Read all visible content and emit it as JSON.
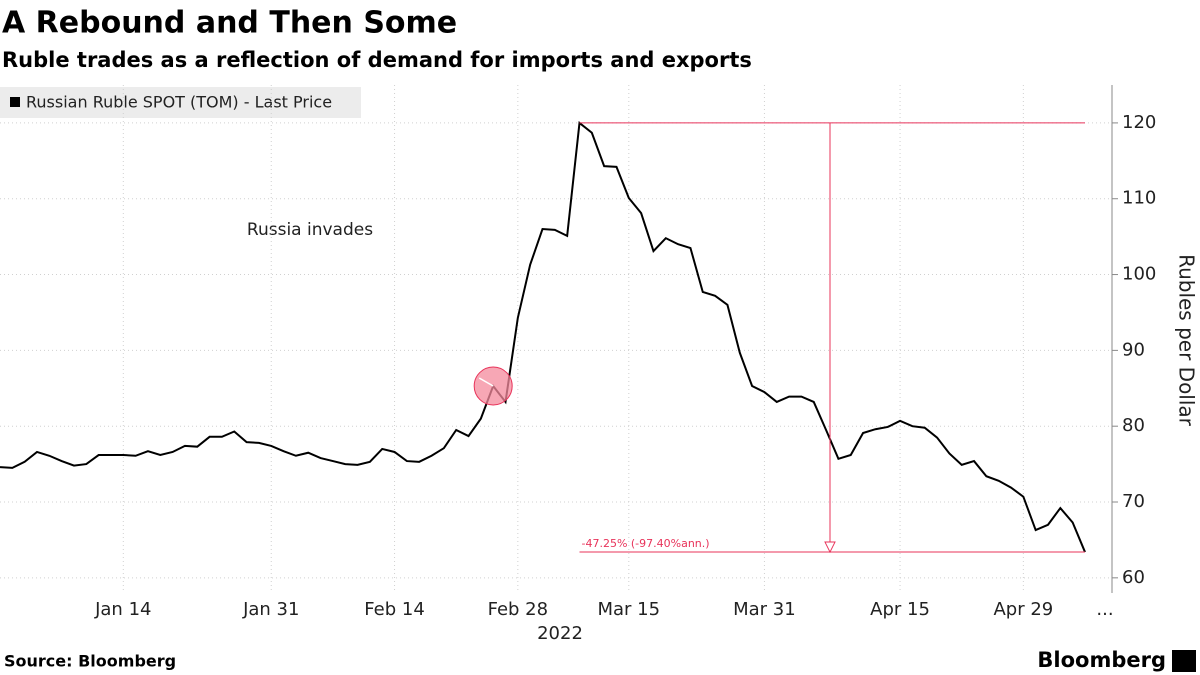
{
  "chart_data": {
    "type": "line",
    "title": "A Rebound and Then Some",
    "subtitle": "Ruble trades as a reflection of demand for imports and exports",
    "source": "Source: Bloomberg",
    "brand": "Bloomberg",
    "categories": [
      null,
      null,
      null,
      null,
      null,
      null,
      null,
      null,
      null,
      null,
      "Jan 14",
      null,
      null,
      null,
      null,
      null,
      null,
      null,
      null,
      null,
      null,
      null,
      "Jan 31",
      null,
      null,
      null,
      null,
      null,
      null,
      null,
      null,
      null,
      "Feb 14",
      null,
      null,
      null,
      null,
      null,
      null,
      null,
      null,
      null,
      "Feb 28",
      null,
      null,
      null,
      null,
      null,
      null,
      null,
      null,
      "Mar 15",
      null,
      null,
      null,
      null,
      null,
      null,
      null,
      null,
      null,
      null,
      "Mar 31",
      null,
      null,
      null,
      null,
      null,
      null,
      null,
      null,
      null,
      null,
      "Apr 15",
      null,
      null,
      null,
      null,
      null,
      null,
      null,
      null,
      null,
      "Apr 29",
      null,
      null,
      null,
      null,
      null
    ],
    "x_year_label": "2022",
    "x_overflow_label": "...",
    "series": [
      {
        "name": "Russian Ruble SPOT (TOM) - Last Price",
        "color": "#000000",
        "values": [
          74.6,
          74.5,
          75.3,
          76.6,
          76.1,
          75.4,
          74.8,
          75.0,
          76.2,
          76.2,
          76.2,
          76.1,
          76.7,
          76.2,
          76.6,
          77.4,
          77.3,
          78.6,
          78.6,
          79.3,
          77.9,
          77.8,
          77.4,
          76.7,
          76.1,
          76.5,
          75.8,
          75.4,
          75.0,
          74.9,
          75.3,
          77.0,
          76.6,
          75.4,
          75.3,
          76.1,
          77.1,
          79.5,
          78.7,
          81.0,
          85.3,
          83.2,
          94.3,
          101.3,
          106.0,
          105.9,
          105.1,
          120.0,
          118.7,
          114.3,
          114.2,
          110.1,
          108.1,
          103.1,
          104.8,
          104.0,
          103.5,
          97.7,
          97.2,
          96.0,
          89.7,
          85.3,
          84.5,
          83.2,
          83.9,
          83.9,
          83.2,
          79.5,
          75.7,
          76.2,
          79.1,
          79.6,
          79.9,
          80.7,
          80.0,
          79.8,
          78.5,
          76.4,
          74.9,
          75.4,
          73.4,
          72.8,
          71.9,
          70.7,
          66.3,
          67.0,
          69.2,
          67.3,
          63.4
        ]
      }
    ],
    "ylim": [
      58,
      125
    ],
    "yticks": [
      60,
      70,
      80,
      90,
      100,
      110,
      120
    ],
    "ylabel": "Rubles per Dollar",
    "grid": true,
    "legend": "upper left",
    "annotation": "Russia invades",
    "change_label": "-47.25% (-97.40%ann.)",
    "annotation_color": "#e8335a"
  }
}
